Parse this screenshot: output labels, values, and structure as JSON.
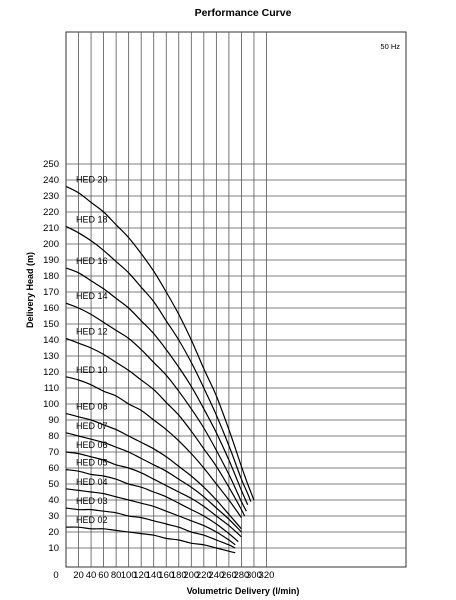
{
  "chart_data": {
    "type": "line",
    "title": "Performance Curve",
    "xlabel": "Volumetric Delivery (l/min)",
    "ylabel": "Delivery Head (m)",
    "annotation": "50 Hz",
    "grid": true,
    "x_ticks": [
      "0",
      "20",
      "40",
      "60",
      "80",
      "100",
      "120",
      "140",
      "160",
      "180",
      "200",
      "220",
      "240",
      "260",
      "280",
      "300",
      "320"
    ],
    "y_ticks": [
      "10",
      "20",
      "30",
      "40",
      "50",
      "60",
      "70",
      "80",
      "90",
      "100",
      "110",
      "120",
      "130",
      "140",
      "150",
      "160",
      "170",
      "180",
      "190",
      "200",
      "210",
      "220",
      "230",
      "240",
      "250"
    ],
    "series": [
      {
        "name": "HED 20",
        "x": [
          0,
          20,
          40,
          60,
          80,
          100,
          120,
          140,
          160,
          180,
          200,
          220,
          240,
          260,
          280,
          290,
          300
        ],
        "y": [
          236,
          232,
          226,
          220,
          212,
          204,
          194,
          183,
          170,
          156,
          140,
          122,
          105,
          84,
          61,
          50,
          40
        ]
      },
      {
        "name": "HED 18",
        "x": [
          0,
          20,
          40,
          60,
          80,
          100,
          120,
          140,
          160,
          180,
          200,
          220,
          240,
          260,
          280,
          290,
          295
        ],
        "y": [
          211,
          207,
          202,
          196,
          189,
          182,
          173,
          164,
          152,
          140,
          126,
          110,
          93,
          74,
          53,
          44,
          39
        ]
      },
      {
        "name": "HED 16",
        "x": [
          0,
          20,
          40,
          60,
          80,
          100,
          120,
          140,
          160,
          180,
          200,
          220,
          240,
          260,
          280,
          290
        ],
        "y": [
          185,
          182,
          177,
          172,
          166,
          160,
          152,
          144,
          134,
          123,
          111,
          97,
          82,
          65,
          46,
          37
        ]
      },
      {
        "name": "HED 14",
        "x": [
          0,
          20,
          40,
          60,
          80,
          100,
          120,
          140,
          160,
          180,
          200,
          220,
          240,
          260,
          280,
          288
        ],
        "y": [
          163,
          160,
          156,
          151,
          146,
          141,
          134,
          126,
          118,
          108,
          97,
          85,
          71,
          56,
          39,
          33
        ]
      },
      {
        "name": "HED 12",
        "x": [
          0,
          20,
          40,
          60,
          80,
          100,
          120,
          140,
          160,
          180,
          200,
          220,
          240,
          260,
          280,
          285
        ],
        "y": [
          141,
          138,
          135,
          131,
          126,
          121,
          115,
          109,
          101,
          93,
          83,
          72,
          61,
          48,
          34,
          30
        ]
      },
      {
        "name": "HED 10",
        "x": [
          0,
          20,
          40,
          60,
          80,
          100,
          120,
          140,
          160,
          180,
          200,
          220,
          240,
          260,
          280
        ],
        "y": [
          117,
          115,
          112,
          108,
          105,
          100,
          96,
          90,
          84,
          77,
          69,
          60,
          50,
          40,
          29
        ]
      },
      {
        "name": "HED 08",
        "x": [
          0,
          20,
          40,
          60,
          80,
          100,
          120,
          140,
          160,
          180,
          200,
          220,
          240,
          260,
          280
        ],
        "y": [
          94,
          92,
          90,
          87,
          84,
          80,
          76,
          72,
          67,
          61,
          55,
          48,
          40,
          31,
          22
        ]
      },
      {
        "name": "HED 07",
        "x": [
          0,
          20,
          40,
          60,
          80,
          100,
          120,
          140,
          160,
          180,
          200,
          220,
          240,
          260,
          280
        ],
        "y": [
          82,
          80,
          78,
          76,
          73,
          70,
          66,
          62,
          58,
          53,
          48,
          42,
          35,
          28,
          20
        ]
      },
      {
        "name": "HED 06",
        "x": [
          0,
          20,
          40,
          60,
          80,
          100,
          120,
          140,
          160,
          180,
          200,
          220,
          240,
          260,
          280
        ],
        "y": [
          70,
          69,
          67,
          65,
          62,
          60,
          57,
          53,
          49,
          45,
          41,
          36,
          30,
          24,
          17
        ]
      },
      {
        "name": "HED 05",
        "x": [
          0,
          20,
          40,
          60,
          80,
          100,
          120,
          140,
          160,
          180,
          200,
          220,
          240,
          260,
          275
        ],
        "y": [
          59,
          58,
          56,
          55,
          53,
          50,
          48,
          45,
          42,
          38,
          34,
          30,
          25,
          19,
          14
        ]
      },
      {
        "name": "HED 04",
        "x": [
          0,
          20,
          40,
          60,
          80,
          100,
          120,
          140,
          160,
          180,
          200,
          220,
          240,
          260,
          270
        ],
        "y": [
          47,
          46,
          45,
          44,
          42,
          40,
          38,
          36,
          33,
          30,
          27,
          24,
          20,
          15,
          12
        ]
      },
      {
        "name": "HED 03",
        "x": [
          0,
          20,
          40,
          60,
          80,
          100,
          120,
          140,
          160,
          180,
          200,
          220,
          240,
          260,
          270
        ],
        "y": [
          35,
          34,
          34,
          33,
          32,
          30,
          29,
          27,
          25,
          23,
          20,
          18,
          15,
          12,
          10
        ]
      },
      {
        "name": "HED 02",
        "x": [
          0,
          20,
          40,
          60,
          80,
          100,
          120,
          140,
          160,
          180,
          200,
          220,
          240,
          260,
          270
        ],
        "y": [
          23,
          23,
          22,
          22,
          21,
          20,
          19,
          18,
          16,
          15,
          13,
          12,
          10,
          8,
          7
        ]
      }
    ]
  }
}
